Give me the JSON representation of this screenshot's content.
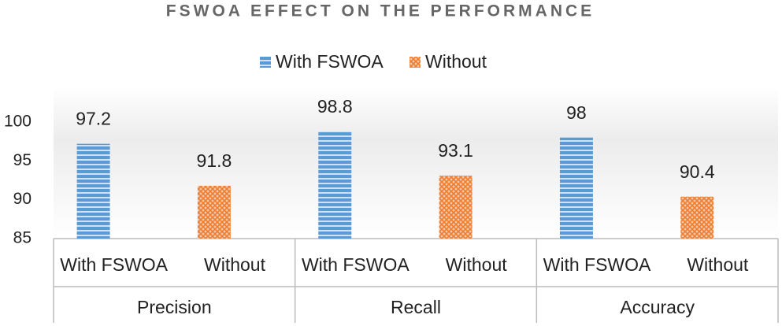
{
  "chart_data": {
    "type": "bar",
    "title": "FSWOA EFFECT ON THE PERFORMANCE",
    "categories": [
      "Precision",
      "Recall",
      "Accuracy"
    ],
    "series": [
      {
        "name": "With FSWOA",
        "color": "#5b9bd5",
        "values": [
          97.2,
          98.8,
          98
        ]
      },
      {
        "name": "Without",
        "color": "#ed7d31",
        "values": [
          91.8,
          93.1,
          90.4
        ]
      }
    ],
    "ylim": [
      85,
      100
    ],
    "yticks": [
      85,
      90,
      95,
      100
    ],
    "grid": false,
    "legend": "top"
  }
}
